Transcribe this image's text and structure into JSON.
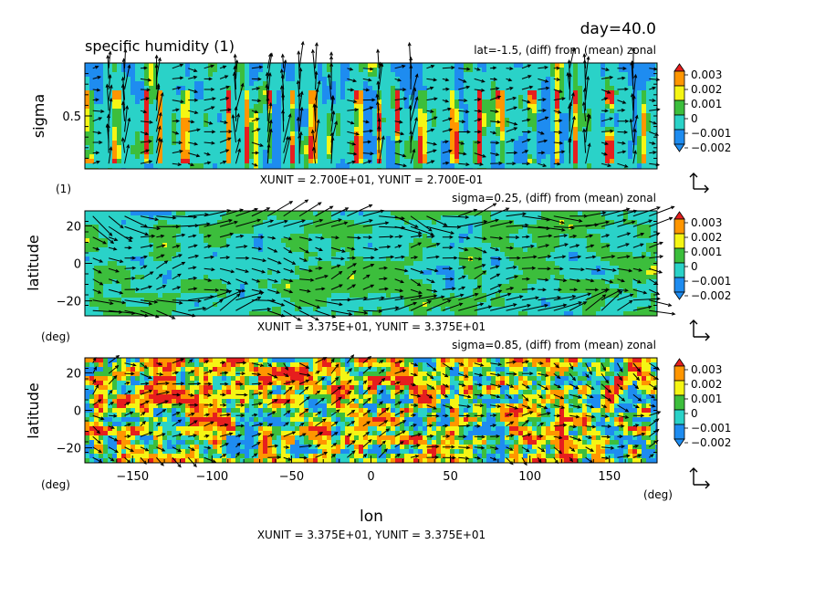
{
  "header": {
    "day_label": "day=40.0",
    "title": "specific humidity (1)"
  },
  "chart_data": [
    {
      "type": "heatmap",
      "subtitle": "lat=-1.5, (diff) from (mean) zonal",
      "ylabel": "sigma",
      "y_unit_label": "(1)",
      "y_ticks": [
        {
          "value": 0.5,
          "label": "0.5"
        }
      ],
      "ylim": [
        0.0,
        1.0
      ],
      "xlim": [
        -180,
        180
      ],
      "unit_text": "XUNIT = 2.700E+01, YUNIT = 2.700E-01",
      "colorbar": [
        "0.003",
        "0.002",
        "0.001",
        "0",
        "−0.001",
        "−0.002"
      ]
    },
    {
      "type": "heatmap",
      "subtitle": "sigma=0.25, (diff) from (mean) zonal",
      "ylabel": "latitude",
      "y_unit_label": "(deg)",
      "y_ticks": [
        {
          "value": 20,
          "label": "20"
        },
        {
          "value": 0,
          "label": "0"
        },
        {
          "value": -20,
          "label": "−20"
        }
      ],
      "ylim": [
        -28,
        28
      ],
      "xlim": [
        -180,
        180
      ],
      "unit_text": "XUNIT = 3.375E+01, YUNIT = 3.375E+01",
      "colorbar": [
        "0.003",
        "0.002",
        "0.001",
        "0",
        "−0.001",
        "−0.002"
      ]
    },
    {
      "type": "heatmap",
      "subtitle": "sigma=0.85, (diff) from (mean) zonal",
      "ylabel": "latitude",
      "y_unit_label": "(deg)",
      "x_unit_label": "(deg)",
      "xlabel": "lon",
      "y_ticks": [
        {
          "value": 20,
          "label": "20"
        },
        {
          "value": 0,
          "label": "0"
        },
        {
          "value": -20,
          "label": "−20"
        }
      ],
      "x_ticks": [
        {
          "value": -150,
          "label": "−150"
        },
        {
          "value": -100,
          "label": "−100"
        },
        {
          "value": -50,
          "label": "−50"
        },
        {
          "value": 0,
          "label": "0"
        },
        {
          "value": 50,
          "label": "50"
        },
        {
          "value": 100,
          "label": "100"
        },
        {
          "value": 150,
          "label": "150"
        }
      ],
      "ylim": [
        -28,
        28
      ],
      "xlim": [
        -180,
        180
      ],
      "unit_text": "XUNIT = 3.375E+01, YUNIT = 3.375E+01",
      "colorbar": [
        "0.003",
        "0.002",
        "0.001",
        "0",
        "−0.001",
        "−0.002"
      ]
    }
  ],
  "colors": {
    "c_neg2": "#1e8cf0",
    "c_neg1": "#2ad2c8",
    "c_zero": "#3cbe3c",
    "c_pos1": "#f5f514",
    "c_pos2": "#ff9600",
    "c_pos3": "#e61e1e",
    "vector": "#000000"
  }
}
